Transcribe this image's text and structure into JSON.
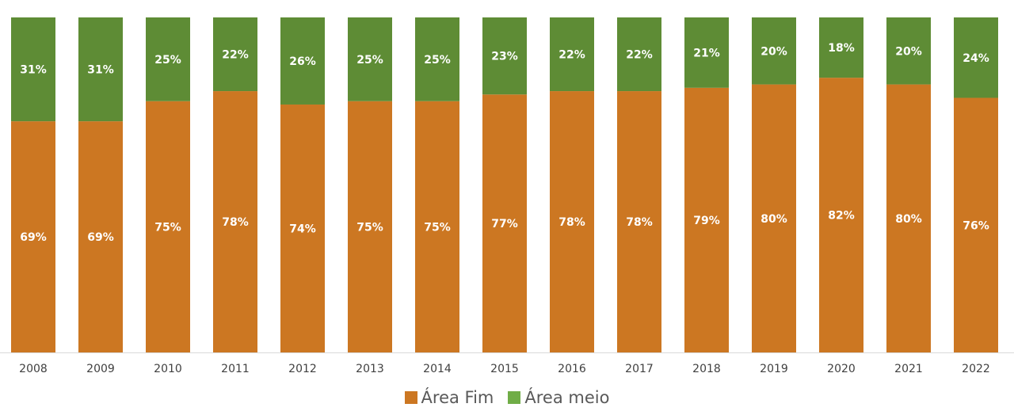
{
  "chart_data": {
    "type": "bar",
    "stacked": true,
    "categories": [
      "2008",
      "2009",
      "2010",
      "2011",
      "2012",
      "2013",
      "2014",
      "2015",
      "2016",
      "2017",
      "2018",
      "2019",
      "2020",
      "2021",
      "2022"
    ],
    "series": [
      {
        "name": "Área Fim",
        "color": "#CC7722",
        "values": [
          69,
          69,
          75,
          78,
          74,
          75,
          75,
          77,
          78,
          78,
          79,
          80,
          82,
          80,
          76
        ],
        "labels": [
          "69%",
          "69%",
          "75%",
          "78%",
          "74%",
          "75%",
          "75%",
          "77%",
          "78%",
          "78%",
          "79%",
          "80%",
          "82%",
          "80%",
          "76%"
        ]
      },
      {
        "name": "Área meio",
        "color": "#5E8C35",
        "values": [
          31,
          31,
          25,
          22,
          26,
          25,
          25,
          23,
          22,
          22,
          21,
          20,
          18,
          20,
          24
        ],
        "labels": [
          "31%",
          "31%",
          "25%",
          "22%",
          "26%",
          "25%",
          "25%",
          "23%",
          "22%",
          "22%",
          "21%",
          "20%",
          "18%",
          "20%",
          "24%"
        ]
      }
    ],
    "legend_swatch_colors": [
      "#CC7722",
      "#70AD47"
    ],
    "ylim": [
      0,
      100
    ],
    "title": "",
    "xlabel": "",
    "ylabel": "",
    "grid": false,
    "legend_position": "bottom"
  }
}
